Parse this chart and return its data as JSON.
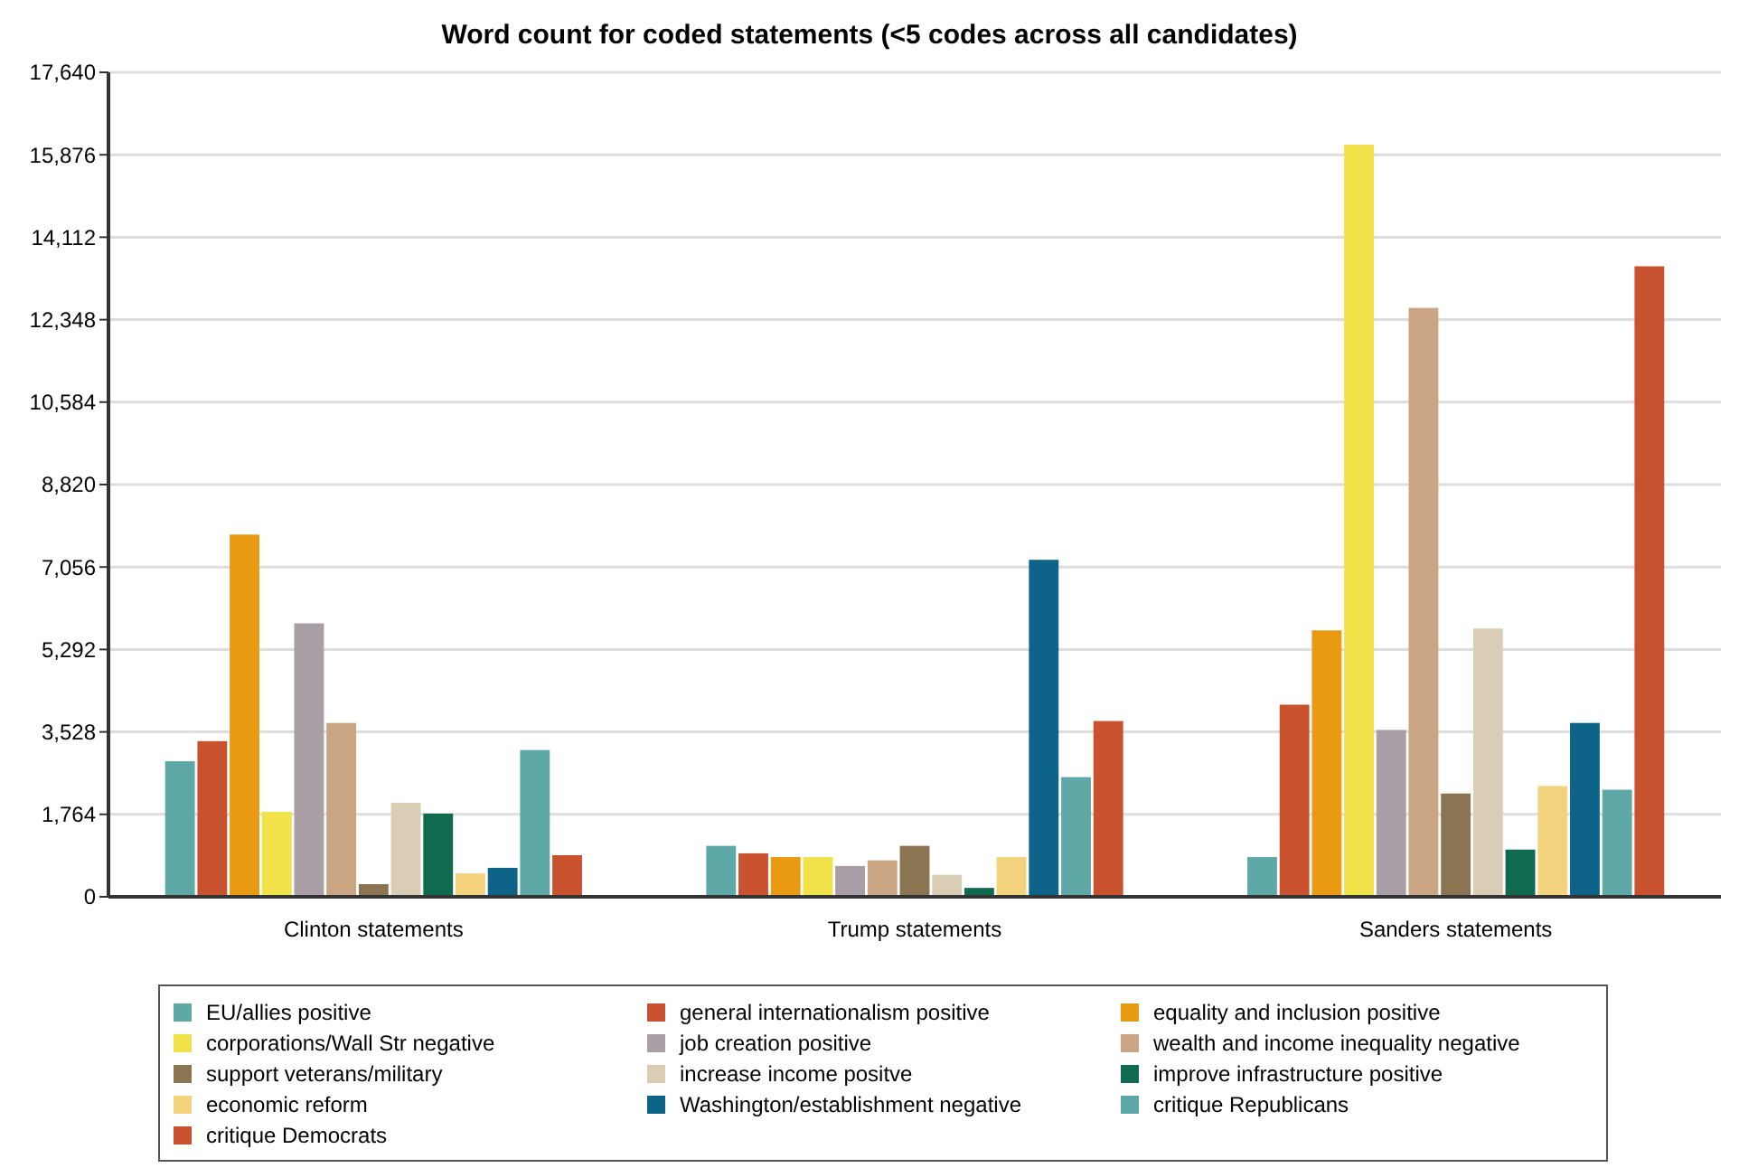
{
  "chart_data": {
    "type": "bar",
    "title": "Word count for coded statements (<5 codes across all candidates)",
    "categories": [
      "Clinton statements",
      "Trump statements",
      "Sanders statements"
    ],
    "series": [
      {
        "name": "EU/allies positive",
        "color": "#5fa8a8",
        "values": [
          2900,
          1090,
          850
        ]
      },
      {
        "name": "general internationalism positive",
        "color": "#c8522e",
        "values": [
          3330,
          930,
          4110
        ]
      },
      {
        "name": "equality and inclusion positive",
        "color": "#e89a12",
        "values": [
          7750,
          850,
          5700
        ]
      },
      {
        "name": "corporations/Wall Str negative",
        "color": "#f2e24a",
        "values": [
          1820,
          850,
          16090
        ]
      },
      {
        "name": "job creation positive",
        "color": "#aa9ea6",
        "values": [
          5850,
          660,
          3570
        ]
      },
      {
        "name": "wealth and income inequality negative",
        "color": "#c9a584",
        "values": [
          3720,
          780,
          12600
        ]
      },
      {
        "name": "support veterans/military",
        "color": "#8a7452",
        "values": [
          270,
          1090,
          2210
        ]
      },
      {
        "name": "increase income positve",
        "color": "#d9cdb6",
        "values": [
          2010,
          470,
          5740
        ]
      },
      {
        "name": "improve infrastructure positive",
        "color": "#0f6a50",
        "values": [
          1780,
          190,
          1010
        ]
      },
      {
        "name": "economic reform",
        "color": "#f4d37e",
        "values": [
          500,
          850,
          2370
        ]
      },
      {
        "name": "Washington/establishment negative",
        "color": "#0d6488",
        "values": [
          620,
          7210,
          3720
        ]
      },
      {
        "name": "critique Republicans",
        "color": "#5fa8a8",
        "values": [
          3140,
          2560,
          2290
        ]
      },
      {
        "name": "critique Democrats",
        "color": "#c8522e",
        "values": [
          890,
          3760,
          13490
        ]
      }
    ],
    "ylim": [
      0,
      17640
    ],
    "yticks": [
      {
        "value": 0,
        "label": "0"
      },
      {
        "value": 1764,
        "label": "1,764"
      },
      {
        "value": 3528,
        "label": "3,528"
      },
      {
        "value": 5292,
        "label": "5,292"
      },
      {
        "value": 7056,
        "label": "7,056"
      },
      {
        "value": 8820,
        "label": "8,820"
      },
      {
        "value": 10584,
        "label": "10,584"
      },
      {
        "value": 12348,
        "label": "12,348"
      },
      {
        "value": 14112,
        "label": "14,112"
      },
      {
        "value": 15876,
        "label": "15,876"
      },
      {
        "value": 17640,
        "label": "17,640"
      }
    ],
    "grid": "y",
    "legend": "bottom"
  }
}
